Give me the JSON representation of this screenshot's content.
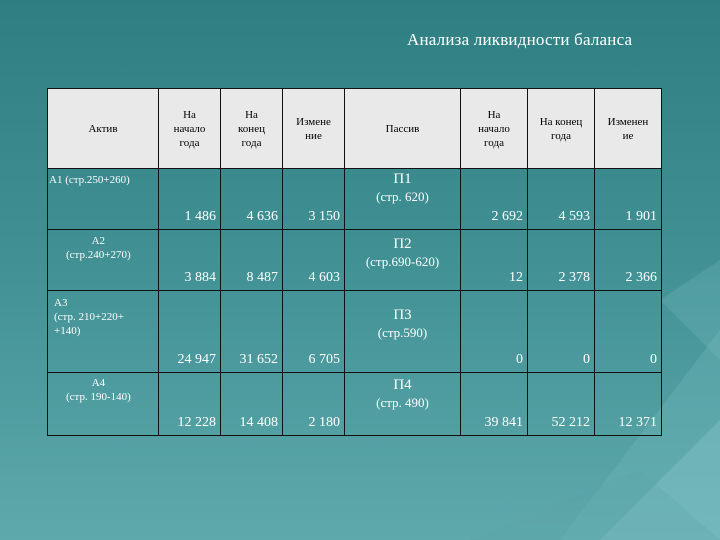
{
  "title": "Анализа ликвидности баланса",
  "header": {
    "aktiv": "Актив",
    "na_nachalo_1": "На\nначало\nгода",
    "na_konec_1": "На\nконец\nгода",
    "izmenenie_1": "Измене\nние",
    "passiv": "Пассив",
    "na_nachalo_2": "На\nначало\nгода",
    "na_konec_2": "На конец\nгода",
    "izmenenie_2": "Изменен\nие"
  },
  "rows": [
    {
      "asset_label": "А1 (стр.250+260)",
      "a_start": "1 486",
      "a_end": "4 636",
      "a_change": "3 150",
      "passive_code": "П1",
      "passive_detail": "(стр. 620)",
      "p_start": "2 692",
      "p_end": "4 593",
      "p_change": "1 901"
    },
    {
      "asset_label": "А2\n(стр.240+270)",
      "a_start": "3 884",
      "a_end": "8 487",
      "a_change": "4 603",
      "passive_code": "П2",
      "passive_detail": "(стр.690-620)",
      "p_start": "12",
      "p_end": "2 378",
      "p_change": "2 366"
    },
    {
      "asset_label": "А3\n(стр. 210+220+\n+140)",
      "a_start": "24 947",
      "a_end": "31 652",
      "a_change": "6 705",
      "passive_code": "П3",
      "passive_detail": "(стр.590)",
      "p_start": "0",
      "p_end": "0",
      "p_change": "0"
    },
    {
      "asset_label": "А4\n(стр. 190-140)",
      "a_start": "12 228",
      "a_end": "14 408",
      "a_change": "2 180",
      "passive_code": "П4",
      "passive_detail": "(стр. 490)",
      "p_start": "39 841",
      "p_end": "52 212",
      "p_change": "12 371"
    }
  ],
  "colors": {
    "background_top": "#2f7f82",
    "background_bottom": "#5ea9ac",
    "header_fill": "#e9e9e9",
    "text": "#ffffff"
  }
}
